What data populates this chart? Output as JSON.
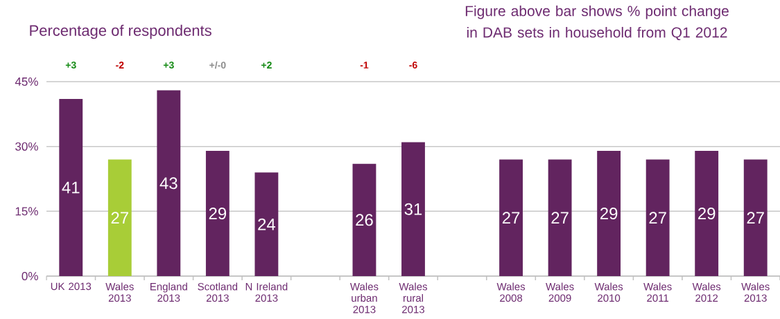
{
  "chart_data": {
    "type": "bar",
    "ylabel": "Percentage of respondents",
    "categories": [
      "UK 2013",
      "Wales 2013",
      "England 2013",
      "Scotland 2013",
      "N Ireland 2013",
      null,
      "Wales urban 2013",
      "Wales rural 2013",
      null,
      "Wales 2008",
      "Wales 2009",
      "Wales 2010",
      "Wales 2011",
      "Wales 2012",
      "Wales 2013"
    ],
    "values": [
      41,
      27,
      43,
      29,
      24,
      null,
      26,
      31,
      null,
      27,
      27,
      29,
      27,
      29,
      27
    ],
    "colors": [
      "#62245f",
      "#a8cd37",
      "#62245f",
      "#62245f",
      "#62245f",
      null,
      "#62245f",
      "#62245f",
      null,
      "#62245f",
      "#62245f",
      "#62245f",
      "#62245f",
      "#62245f",
      "#62245f"
    ],
    "ylim": [
      0,
      45
    ],
    "yticks": [
      {
        "value": 0,
        "label": "0%"
      },
      {
        "value": 15,
        "label": "15%"
      },
      {
        "value": 30,
        "label": "30%"
      },
      {
        "value": 45,
        "label": "45%"
      }
    ],
    "grid": "y",
    "data_labels": true,
    "annotations": [
      "+3",
      "-2",
      "+3",
      "+/-0",
      "+2",
      "-1",
      "-6",
      "Figure above bar shows % point change in DAB sets in household from Q1 2012"
    ]
  }
}
